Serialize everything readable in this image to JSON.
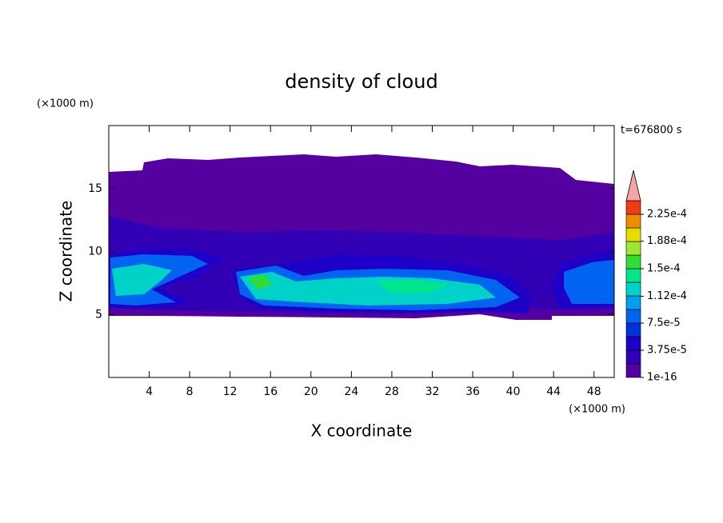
{
  "chart_data": {
    "type": "contour",
    "title": "density of cloud",
    "x_label": "X coordinate",
    "y_label": "Z coordinate",
    "x_unit": "(×1000 m)",
    "y_unit": "(×1000 m)",
    "time_label": "t=676800 s",
    "xlim": [
      0,
      50
    ],
    "xticks": [
      4,
      8,
      12,
      16,
      20,
      24,
      28,
      32,
      36,
      40,
      44,
      48
    ],
    "ylim": [
      0,
      20
    ],
    "yticks": [
      5,
      10,
      15
    ],
    "colorbar": {
      "levels": [
        1e-16,
        1.875e-05,
        3.75e-05,
        5.625e-05,
        7.5e-05,
        9.375e-05,
        0.0001125,
        0.00013125,
        0.00015,
        0.00016875,
        0.0001875,
        0.00020625,
        0.000225,
        0.00024375
      ],
      "colors": [
        "#5500a0",
        "#3200b4",
        "#1e00c8",
        "#0032dc",
        "#0064f0",
        "#00a0f0",
        "#00d2c8",
        "#00e68c",
        "#32dc32",
        "#a0e632",
        "#e6dc00",
        "#f08c00",
        "#f03c14"
      ],
      "extend_color": "#f5a5a5",
      "ticks": [
        {
          "value": 1e-16,
          "label": "1e-16"
        },
        {
          "value": 3.75e-05,
          "label": "3.75e-5"
        },
        {
          "value": 7.5e-05,
          "label": "7.5e-5"
        },
        {
          "value": 0.000112,
          "label": "1.12e-4"
        },
        {
          "value": 0.00015,
          "label": "1.5e-4"
        },
        {
          "value": 0.000188,
          "label": "1.88e-4"
        },
        {
          "value": 0.000225,
          "label": "2.25e-4"
        }
      ]
    }
  }
}
